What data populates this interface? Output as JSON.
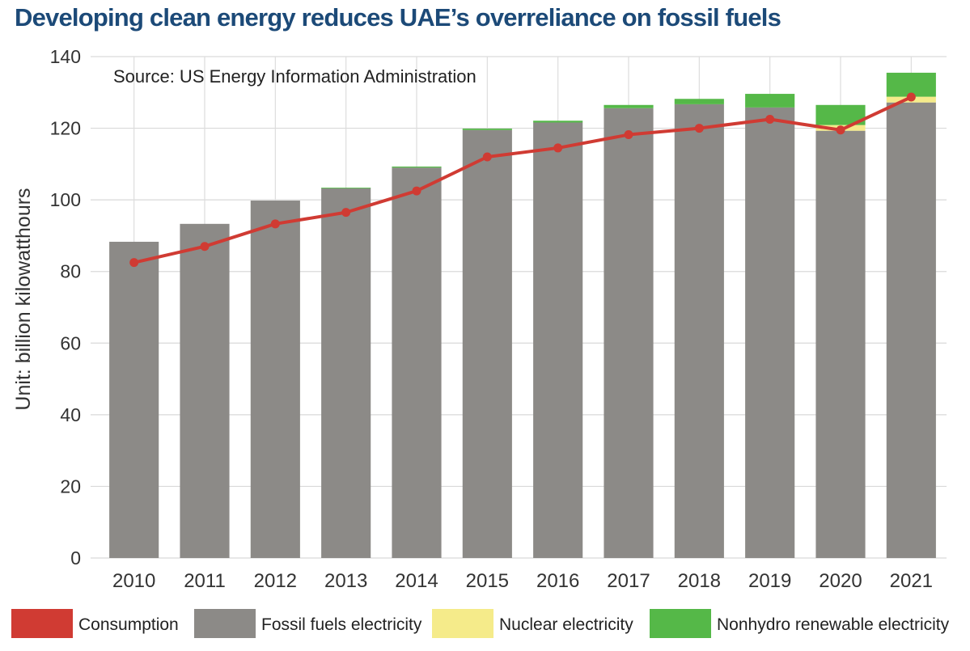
{
  "chart_data": {
    "type": "bar",
    "title": "Developing clean energy reduces UAE’s overreliance on fossil fuels",
    "source": "Source: US Energy Information Administration",
    "ylabel": "Unit: billion kilowatthours",
    "xlabel": "",
    "ylim": [
      0,
      140
    ],
    "yticks": [
      0,
      20,
      40,
      60,
      80,
      100,
      120,
      140
    ],
    "grid": true,
    "stacked": true,
    "legend_position": "bottom",
    "categories": [
      "2010",
      "2011",
      "2012",
      "2013",
      "2014",
      "2015",
      "2016",
      "2017",
      "2018",
      "2019",
      "2020",
      "2021"
    ],
    "series": [
      {
        "name": "Fossil fuels electricity",
        "kind": "bar",
        "color": "#8c8a87",
        "values": [
          88.3,
          93.3,
          99.8,
          103.2,
          109.0,
          119.5,
          121.6,
          125.6,
          126.7,
          125.8,
          119.3,
          127.2
        ]
      },
      {
        "name": "Nuclear electricity",
        "kind": "bar",
        "color": "#f5eb8a",
        "values": [
          0,
          0,
          0,
          0,
          0,
          0,
          0,
          0,
          0,
          0,
          1.6,
          1.6
        ]
      },
      {
        "name": "Nonhydro renewable electricity",
        "kind": "bar",
        "color": "#55b848",
        "values": [
          0,
          0,
          0,
          0.2,
          0.3,
          0.4,
          0.5,
          0.9,
          1.5,
          3.8,
          5.6,
          6.7
        ]
      },
      {
        "name": "Consumption",
        "kind": "line",
        "color": "#d03b33",
        "values": [
          82.5,
          87.0,
          93.3,
          96.5,
          102.5,
          112.0,
          114.5,
          118.2,
          120.0,
          122.5,
          119.5,
          128.7
        ]
      }
    ],
    "legend_order": [
      "Consumption",
      "Fossil fuels electricity",
      "Nuclear electricity",
      "Nonhydro renewable electricity"
    ]
  }
}
